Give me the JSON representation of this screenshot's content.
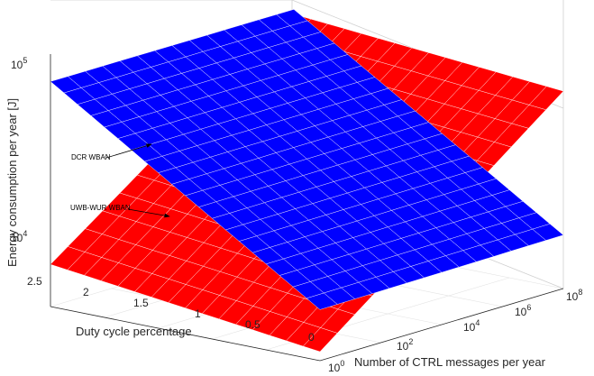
{
  "chart_data": {
    "type": "surface",
    "title": "",
    "xlabel": "Duty cycle percentage",
    "ylabel": "Number of CTRL messages per year",
    "zlabel": "Energy consumption per year [J]",
    "x_ticks": [
      "0",
      "0.5",
      "1",
      "1.5",
      "2",
      "2.5"
    ],
    "y_ticks": [
      {
        "base": "10",
        "exp": "0"
      },
      {
        "base": "10",
        "exp": "2"
      },
      {
        "base": "10",
        "exp": "4"
      },
      {
        "base": "10",
        "exp": "6"
      },
      {
        "base": "10",
        "exp": "8"
      }
    ],
    "z_ticks": [
      {
        "base": "10",
        "exp": "4"
      },
      {
        "base": "10",
        "exp": "5"
      }
    ],
    "xlim": [
      0,
      2.5
    ],
    "ylim": [
      1,
      100000000
    ],
    "zlim": [
      5000,
      120000
    ],
    "y_scale": "log",
    "z_scale": "log",
    "grid": true,
    "series": [
      {
        "name": "DCR WBAN",
        "color": "#0000ff",
        "description_points": [
          {
            "duty_cycle": 2.5,
            "ctrl_msgs": 1,
            "energy": 85000
          },
          {
            "duty_cycle": 0.0,
            "ctrl_msgs": 1,
            "energy": 9500
          },
          {
            "duty_cycle": 2.5,
            "ctrl_msgs": 100000000,
            "energy": 85000
          },
          {
            "duty_cycle": 0.0,
            "ctrl_msgs": 100000000,
            "energy": 9800
          }
        ]
      },
      {
        "name": "UWB-WUR WBAN",
        "color": "#ff0000",
        "description_points": [
          {
            "duty_cycle": 2.5,
            "ctrl_msgs": 1,
            "energy": 8500
          },
          {
            "duty_cycle": 0.0,
            "ctrl_msgs": 1,
            "energy": 5600
          },
          {
            "duty_cycle": 2.5,
            "ctrl_msgs": 100000000,
            "energy": 80000
          },
          {
            "duty_cycle": 0.0,
            "ctrl_msgs": 100000000,
            "energy": 60000
          }
        ]
      }
    ],
    "annotations": [
      {
        "text": "DCR WBAN",
        "target_series": "DCR WBAN"
      },
      {
        "text": "UWB-WUR WBAN",
        "target_series": "UWB-WUR WBAN"
      }
    ]
  }
}
